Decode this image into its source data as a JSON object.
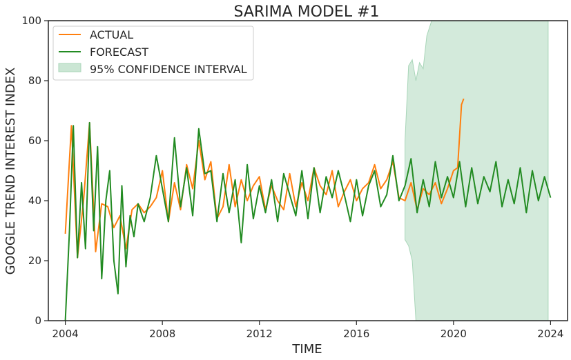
{
  "chart_data": {
    "type": "line",
    "title": "SARIMA MODEL #1",
    "xlabel": "TIME",
    "ylabel": "GOOGLE TREND INTEREST INDEX",
    "xlim": [
      2003.3,
      2024.7
    ],
    "ylim": [
      0,
      100
    ],
    "x_ticks": [
      2004,
      2008,
      2012,
      2016,
      2020,
      2024
    ],
    "y_ticks": [
      0,
      20,
      40,
      60,
      80,
      100
    ],
    "grid": false,
    "legend_position": "top-left",
    "legend": [
      "ACTUAL",
      "FORECAST",
      "95% CONFIDENCE INTERVAL"
    ],
    "colors": {
      "actual": "#ff7f0e",
      "forecast": "#228b22",
      "confidence": "#a8d5b8",
      "axis": "#262626"
    },
    "series": [
      {
        "name": "ACTUAL",
        "x": [
          2004.0,
          2004.25,
          2004.5,
          2004.75,
          2005.0,
          2005.25,
          2005.5,
          2005.75,
          2006.0,
          2006.25,
          2006.5,
          2006.75,
          2007.0,
          2007.25,
          2007.5,
          2007.75,
          2008.0,
          2008.25,
          2008.5,
          2008.75,
          2009.0,
          2009.25,
          2009.5,
          2009.75,
          2010.0,
          2010.25,
          2010.5,
          2010.75,
          2011.0,
          2011.25,
          2011.5,
          2011.75,
          2012.0,
          2012.25,
          2012.5,
          2012.75,
          2013.0,
          2013.25,
          2013.5,
          2013.75,
          2014.0,
          2014.25,
          2014.5,
          2014.75,
          2015.0,
          2015.25,
          2015.5,
          2015.75,
          2016.0,
          2016.25,
          2016.5,
          2016.75,
          2017.0,
          2017.25,
          2017.5,
          2017.75,
          2018.0,
          2018.25,
          2018.5,
          2018.75,
          2019.0,
          2019.25,
          2019.5,
          2019.75,
          2020.0,
          2020.17,
          2020.33,
          2020.42
        ],
        "y": [
          29,
          65,
          21,
          40,
          66,
          23,
          39,
          38,
          31,
          35,
          24,
          37,
          39,
          36,
          38,
          41,
          50,
          33,
          46,
          37,
          52,
          44,
          60,
          47,
          53,
          34,
          38,
          52,
          38,
          47,
          40,
          45,
          48,
          37,
          45,
          40,
          37,
          49,
          38,
          46,
          40,
          51,
          45,
          42,
          50,
          38,
          43,
          47,
          40,
          44,
          46,
          52,
          44,
          47,
          53,
          41,
          40,
          46,
          37,
          44,
          42,
          46,
          39,
          44,
          50,
          51,
          72,
          74
        ]
      },
      {
        "name": "FORECAST",
        "x": [
          2004.0,
          2004.17,
          2004.33,
          2004.5,
          2004.67,
          2004.83,
          2005.0,
          2005.17,
          2005.33,
          2005.5,
          2005.67,
          2005.83,
          2006.0,
          2006.17,
          2006.33,
          2006.5,
          2006.67,
          2006.83,
          2007.0,
          2007.25,
          2007.5,
          2007.75,
          2008.0,
          2008.25,
          2008.5,
          2008.75,
          2009.0,
          2009.25,
          2009.5,
          2009.75,
          2010.0,
          2010.25,
          2010.5,
          2010.75,
          2011.0,
          2011.25,
          2011.5,
          2011.75,
          2012.0,
          2012.25,
          2012.5,
          2012.75,
          2013.0,
          2013.25,
          2013.5,
          2013.75,
          2014.0,
          2014.25,
          2014.5,
          2014.75,
          2015.0,
          2015.25,
          2015.5,
          2015.75,
          2016.0,
          2016.25,
          2016.5,
          2016.75,
          2017.0,
          2017.25,
          2017.5,
          2017.75,
          2018.0,
          2018.25,
          2018.5,
          2018.75,
          2019.0,
          2019.25,
          2019.5,
          2019.75,
          2020.0,
          2020.25,
          2020.5,
          2020.75,
          2021.0,
          2021.25,
          2021.5,
          2021.75,
          2022.0,
          2022.25,
          2022.5,
          2022.75,
          2023.0,
          2023.25,
          2023.5,
          2023.75,
          2024.0
        ],
        "y": [
          0,
          30,
          65,
          21,
          46,
          24,
          66,
          30,
          58,
          14,
          40,
          50,
          20,
          9,
          45,
          18,
          35,
          28,
          39,
          33,
          41,
          55,
          44,
          33,
          61,
          38,
          51,
          35,
          64,
          49,
          50,
          33,
          49,
          36,
          47,
          26,
          52,
          34,
          45,
          36,
          47,
          33,
          49,
          42,
          35,
          50,
          34,
          51,
          36,
          48,
          41,
          50,
          42,
          33,
          47,
          35,
          45,
          50,
          38,
          42,
          55,
          40,
          45,
          54,
          36,
          47,
          38,
          53,
          41,
          48,
          41,
          53,
          38,
          51,
          39,
          48,
          43,
          53,
          38,
          47,
          39,
          51,
          36,
          50,
          40,
          48,
          41
        ]
      }
    ],
    "confidence_interval": {
      "x": [
        2018.0,
        2018.15,
        2018.3,
        2018.45,
        2018.6,
        2018.75,
        2018.9,
        2019.1,
        2019.25,
        2020.0,
        2021.0,
        2022.0,
        2023.0,
        2023.9
      ],
      "upper": [
        60,
        85,
        87,
        80,
        86,
        84,
        95,
        100,
        100,
        100,
        100,
        100,
        100,
        100
      ],
      "lower": [
        27,
        25,
        20,
        0,
        0,
        0,
        0,
        0,
        0,
        0,
        0,
        0,
        0,
        0
      ]
    }
  }
}
